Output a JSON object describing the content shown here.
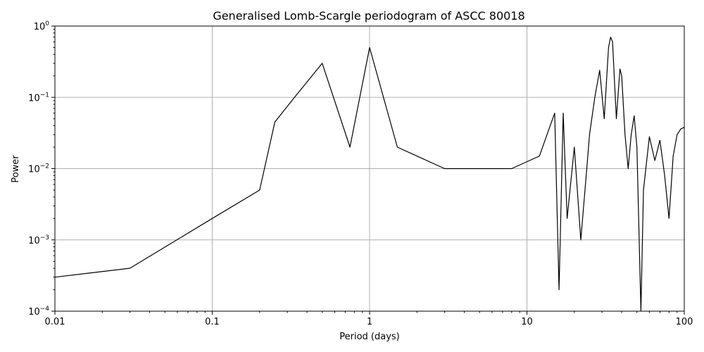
{
  "chart_data": {
    "type": "line",
    "title": "Generalised Lomb-Scargle periodogram of ASCC 80018",
    "xlabel": "Period (days)",
    "ylabel": "Power",
    "xscale": "log",
    "yscale": "log",
    "xlim": [
      0.01,
      100
    ],
    "ylim": [
      0.0001,
      1
    ],
    "grid": true,
    "x_ticks": [
      {
        "value": 0.01,
        "label": "0.01"
      },
      {
        "value": 0.1,
        "label": "0.1"
      },
      {
        "value": 1,
        "label": "1"
      },
      {
        "value": 10,
        "label": "10"
      },
      {
        "value": 100,
        "label": "100"
      }
    ],
    "y_ticks": [
      {
        "value": 0.0001,
        "base": "10",
        "exp": "−4"
      },
      {
        "value": 0.001,
        "base": "10",
        "exp": "−3"
      },
      {
        "value": 0.01,
        "base": "10",
        "exp": "−2"
      },
      {
        "value": 0.1,
        "base": "10",
        "exp": "−1"
      },
      {
        "value": 1,
        "base": "10",
        "exp": "0"
      }
    ],
    "series": [
      {
        "color": "#000000",
        "x": [
          0.01,
          0.03,
          0.1,
          0.2,
          0.25,
          0.333,
          0.5,
          0.75,
          1.0,
          1.5,
          2.0,
          3.0,
          5.0,
          8.0,
          12.0,
          15.0,
          16.0,
          17.0,
          18.0,
          20.0,
          22.0,
          24.0,
          25.0,
          27.0,
          29.0,
          31.0,
          33.0,
          34.0,
          35.0,
          37.0,
          39.0,
          40.0,
          42.0,
          44.0,
          46.0,
          48.0,
          50.0,
          53.0,
          55.0,
          60.0,
          65.0,
          70.0,
          75.0,
          80.0,
          85.0,
          90.0,
          95.0,
          100.0
        ],
        "y": [
          0.0003,
          0.0004,
          0.002,
          0.005,
          0.045,
          0.1,
          0.3,
          0.02,
          0.5,
          0.02,
          0.015,
          0.01,
          0.01,
          0.01,
          0.015,
          0.06,
          0.0002,
          0.06,
          0.002,
          0.02,
          0.001,
          0.01,
          0.03,
          0.1,
          0.24,
          0.05,
          0.5,
          0.7,
          0.6,
          0.05,
          0.25,
          0.2,
          0.03,
          0.01,
          0.03,
          0.055,
          0.02,
          0.0001,
          0.005,
          0.028,
          0.013,
          0.025,
          0.008,
          0.002,
          0.015,
          0.03,
          0.036,
          0.038
        ]
      }
    ]
  }
}
